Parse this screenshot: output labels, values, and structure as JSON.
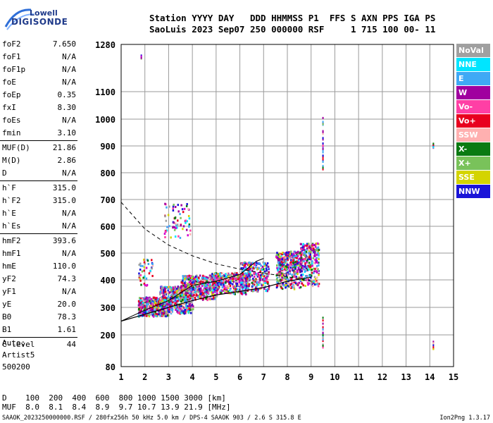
{
  "logo": {
    "line1": "Lowell",
    "line2": "DIGISONDE"
  },
  "header": {
    "line1": "Station YYYY DAY   DDD HHMMSS P1  FFS S AXN PPS IGA PS",
    "line2": "SaoLuis 2023 Sep07 250 000000 RSF     1 715 100 00- 11"
  },
  "params": [
    {
      "label": "foF2",
      "value": "7.650"
    },
    {
      "label": "foF1",
      "value": "N/A"
    },
    {
      "label": "foF1p",
      "value": "N/A"
    },
    {
      "label": "foE",
      "value": "N/A"
    },
    {
      "label": "foEp",
      "value": "0.35"
    },
    {
      "label": "fxI",
      "value": "8.30"
    },
    {
      "label": "foEs",
      "value": "N/A"
    },
    {
      "label": "fmin",
      "value": "3.10"
    },
    {
      "label": "MUF(D)",
      "value": "21.86"
    },
    {
      "label": "M(D)",
      "value": "2.86"
    },
    {
      "label": "D",
      "value": "N/A"
    },
    {
      "label": "h`F",
      "value": "315.0"
    },
    {
      "label": "h`F2",
      "value": "315.0"
    },
    {
      "label": "h`E",
      "value": "N/A"
    },
    {
      "label": "h`Es",
      "value": "N/A"
    },
    {
      "label": "hmF2",
      "value": "393.6"
    },
    {
      "label": "hmF1",
      "value": "N/A"
    },
    {
      "label": "hmE",
      "value": "110.0"
    },
    {
      "label": "yF2",
      "value": "74.3"
    },
    {
      "label": "yF1",
      "value": "N/A"
    },
    {
      "label": "yE",
      "value": "20.0"
    },
    {
      "label": "B0",
      "value": "78.3"
    },
    {
      "label": "B1",
      "value": "1.61"
    },
    {
      "label": "C-level",
      "value": "44"
    }
  ],
  "auto": {
    "line1": "Auto:",
    "line2": "Artist5",
    "line3": "500200"
  },
  "legend": [
    {
      "label": "NoVal",
      "color": "#a0a0a0"
    },
    {
      "label": "NNE",
      "color": "#00e5ff"
    },
    {
      "label": "E",
      "color": "#3fa9f5"
    },
    {
      "label": "W",
      "color": "#a0009f"
    },
    {
      "label": "Vo-",
      "color": "#ff3fa5"
    },
    {
      "label": "Vo+",
      "color": "#e8001f"
    },
    {
      "label": "SSW",
      "color": "#ffb0b0"
    },
    {
      "label": "X-",
      "color": "#0a7a12"
    },
    {
      "label": "X+",
      "color": "#79c25a"
    },
    {
      "label": "SSE",
      "color": "#d4d400"
    },
    {
      "label": "NNW",
      "color": "#1a14d8"
    }
  ],
  "footer": {
    "d_row": "D    100  200  400  600  800 1000 1500 3000 [km]",
    "muf_row": "MUF  8.0  8.1  8.4  8.9  9.7 10.7 13.9 21.9 [MHz]",
    "file_line": "SAAOK_2023250000000.RSF / 280fx256h 50 kHz 5.0 km / DPS-4 SAAOK 903 / 2.6 S 315.8 E",
    "version": "Ion2Png 1.3.17"
  },
  "chart_data": {
    "type": "scatter",
    "title": "",
    "xlabel": "",
    "ylabel": "",
    "xlim": [
      1,
      15
    ],
    "ylim": [
      80,
      1280
    ],
    "xticks": [
      1,
      2,
      3,
      4,
      5,
      6,
      7,
      8,
      9,
      10,
      11,
      12,
      13,
      14,
      15
    ],
    "yticks": [
      80,
      200,
      300,
      400,
      500,
      600,
      700,
      800,
      900,
      1000,
      1100,
      1280
    ],
    "grid": true,
    "clusters": [
      {
        "x0": 1.7,
        "x1": 3.0,
        "y0": 270,
        "y1": 340,
        "n": 520
      },
      {
        "x0": 2.6,
        "x1": 4.0,
        "y0": 280,
        "y1": 380,
        "n": 520
      },
      {
        "x0": 3.5,
        "x1": 5.0,
        "y0": 330,
        "y1": 420,
        "n": 420
      },
      {
        "x0": 4.8,
        "x1": 6.3,
        "y0": 350,
        "y1": 430,
        "n": 360
      },
      {
        "x0": 6.0,
        "x1": 7.2,
        "y0": 360,
        "y1": 470,
        "n": 280
      },
      {
        "x0": 7.5,
        "x1": 8.6,
        "y0": 370,
        "y1": 510,
        "n": 420
      },
      {
        "x0": 8.5,
        "x1": 9.3,
        "y0": 380,
        "y1": 540,
        "n": 240
      },
      {
        "x0": 2.8,
        "x1": 3.9,
        "y0": 560,
        "y1": 690,
        "n": 70
      },
      {
        "x0": 1.7,
        "x1": 2.3,
        "y0": 380,
        "y1": 480,
        "n": 40
      }
    ],
    "bands": [
      {
        "x": 9.5,
        "y0": 800,
        "y1": 1010,
        "n": 30
      },
      {
        "x": 9.5,
        "y0": 140,
        "y1": 270,
        "n": 20
      },
      {
        "x": 14.15,
        "y0": 880,
        "y1": 920,
        "n": 8
      },
      {
        "x": 14.15,
        "y0": 150,
        "y1": 180,
        "n": 6
      },
      {
        "x": 1.85,
        "y0": 1230,
        "y1": 1250,
        "n": 4
      }
    ],
    "trace_solid": [
      [
        1,
        250
      ],
      [
        2,
        275
      ],
      [
        3,
        300
      ],
      [
        4,
        325
      ],
      [
        5,
        345
      ],
      [
        6,
        358
      ],
      [
        7,
        372
      ],
      [
        8,
        395
      ],
      [
        9,
        410
      ]
    ],
    "trace_solid2": [
      [
        1,
        250
      ],
      [
        2,
        290
      ],
      [
        3,
        325
      ],
      [
        4,
        380
      ],
      [
        5,
        395
      ],
      [
        6,
        420
      ],
      [
        6.7,
        470
      ],
      [
        7.0,
        480
      ]
    ],
    "trace_dashed": [
      [
        1,
        690
      ],
      [
        2,
        590
      ],
      [
        3,
        530
      ],
      [
        4,
        490
      ],
      [
        5,
        460
      ],
      [
        6,
        440
      ],
      [
        7,
        425
      ],
      [
        8,
        412
      ],
      [
        9,
        395
      ]
    ]
  }
}
